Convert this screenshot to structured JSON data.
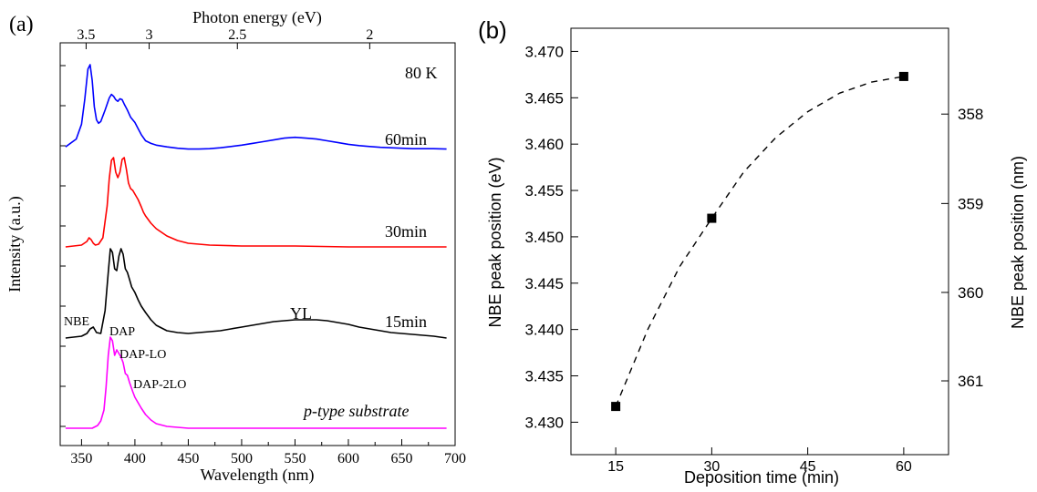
{
  "chart_data": [
    {
      "panel_label": "(a)",
      "type": "line",
      "xlabel": "Wavelength (nm)",
      "ylabel": "Intensity (a.u.)",
      "xlim": [
        330,
        700
      ],
      "x_ticks": [
        350,
        400,
        450,
        500,
        550,
        600,
        650,
        700
      ],
      "top_axis": {
        "label": "Photon energy (eV)",
        "ticks": [
          3.5,
          3,
          2.5,
          2
        ],
        "tick_labels": [
          "3.5",
          "3",
          "2.5",
          "2"
        ]
      },
      "y_tick_labels": "none",
      "annotations": [
        "80 K",
        "NBE",
        "DAP",
        "DAP-LO",
        "DAP-2LO",
        "YL"
      ],
      "series": [
        {
          "name": "60min",
          "color": "#0000ff",
          "x": [
            335,
            345,
            350,
            353,
            356,
            358,
            360,
            362,
            364,
            366,
            368,
            372,
            376,
            378,
            380,
            382,
            384,
            386,
            388,
            390,
            393,
            396,
            400,
            403,
            406,
            410,
            415,
            420,
            430,
            440,
            450,
            460,
            470,
            480,
            490,
            500,
            510,
            520,
            530,
            540,
            550,
            560,
            570,
            580,
            590,
            600,
            610,
            620,
            630,
            640,
            650,
            660,
            670,
            680,
            692
          ],
          "y": [
            0.06,
            0.15,
            0.32,
            0.6,
            0.95,
            1.0,
            0.82,
            0.52,
            0.37,
            0.33,
            0.35,
            0.48,
            0.62,
            0.66,
            0.64,
            0.6,
            0.58,
            0.61,
            0.6,
            0.55,
            0.48,
            0.4,
            0.34,
            0.27,
            0.2,
            0.13,
            0.1,
            0.08,
            0.06,
            0.045,
            0.035,
            0.035,
            0.04,
            0.05,
            0.065,
            0.08,
            0.1,
            0.12,
            0.14,
            0.16,
            0.17,
            0.16,
            0.15,
            0.13,
            0.11,
            0.09,
            0.075,
            0.065,
            0.055,
            0.05,
            0.045,
            0.04,
            0.04,
            0.04,
            0.035
          ]
        },
        {
          "name": "30min",
          "color": "#ff0000",
          "x": [
            335,
            350,
            355,
            357,
            359,
            361,
            363,
            366,
            370,
            374,
            376,
            378,
            380,
            382,
            384,
            386,
            388,
            390,
            392,
            394,
            396,
            398,
            400,
            403,
            406,
            408,
            410,
            415,
            420,
            430,
            440,
            450,
            470,
            500,
            550,
            600,
            650,
            692
          ],
          "y": [
            0.0,
            0.02,
            0.06,
            0.1,
            0.08,
            0.04,
            0.02,
            0.03,
            0.1,
            0.45,
            0.75,
            0.95,
            0.98,
            0.82,
            0.76,
            0.82,
            0.96,
            0.98,
            0.85,
            0.7,
            0.64,
            0.62,
            0.58,
            0.52,
            0.44,
            0.38,
            0.34,
            0.26,
            0.2,
            0.12,
            0.07,
            0.04,
            0.02,
            0.01,
            0.01,
            0.0,
            0.0,
            0.0
          ]
        },
        {
          "name": "15min",
          "color": "#000000",
          "x": [
            335,
            350,
            355,
            358,
            361,
            364,
            368,
            372,
            375,
            377,
            379,
            381,
            383,
            385,
            387,
            389,
            391,
            393,
            395,
            397,
            400,
            403,
            406,
            410,
            415,
            420,
            430,
            440,
            450,
            460,
            470,
            480,
            490,
            500,
            510,
            520,
            530,
            540,
            550,
            560,
            570,
            580,
            590,
            600,
            610,
            620,
            630,
            640,
            650,
            660,
            670,
            680,
            692
          ],
          "y": [
            0.0,
            0.02,
            0.05,
            0.1,
            0.12,
            0.06,
            0.05,
            0.3,
            0.72,
            0.98,
            0.94,
            0.76,
            0.74,
            0.9,
            0.98,
            0.92,
            0.76,
            0.72,
            0.64,
            0.56,
            0.5,
            0.42,
            0.35,
            0.28,
            0.2,
            0.14,
            0.08,
            0.06,
            0.05,
            0.06,
            0.07,
            0.08,
            0.1,
            0.12,
            0.14,
            0.16,
            0.18,
            0.19,
            0.2,
            0.2,
            0.2,
            0.19,
            0.17,
            0.15,
            0.12,
            0.1,
            0.08,
            0.06,
            0.05,
            0.04,
            0.03,
            0.02,
            0.0
          ]
        },
        {
          "name": "p-type substrate",
          "color": "#ff00ff",
          "x": [
            335,
            360,
            365,
            368,
            371,
            373,
            375,
            377,
            379,
            381,
            383,
            385,
            387,
            389,
            391,
            393,
            395,
            398,
            400,
            403,
            406,
            410,
            415,
            420,
            430,
            440,
            450,
            500,
            550,
            600,
            650,
            692
          ],
          "y": [
            0.0,
            0.0,
            0.03,
            0.08,
            0.2,
            0.45,
            0.8,
            1.0,
            0.96,
            0.8,
            0.86,
            0.82,
            0.78,
            0.72,
            0.6,
            0.58,
            0.5,
            0.4,
            0.34,
            0.28,
            0.22,
            0.15,
            0.09,
            0.05,
            0.02,
            0.01,
            0.0,
            0.0,
            0.0,
            0.0,
            0.0,
            0.0
          ]
        }
      ]
    },
    {
      "panel_label": "(b)",
      "type": "scatter",
      "xlabel": "Deposition time (min)",
      "ylabel": "NBE peak position (eV)",
      "y2label": "NBE peak position (nm)",
      "xlim": [
        8,
        67
      ],
      "ylim": [
        3.4265,
        3.4725
      ],
      "x_ticks": [
        15,
        30,
        45,
        60
      ],
      "y_ticks": [
        3.43,
        3.435,
        3.44,
        3.445,
        3.45,
        3.455,
        3.46,
        3.465,
        3.47
      ],
      "y_tick_labels": [
        "3.430",
        "3.435",
        "3.440",
        "3.445",
        "3.450",
        "3.455",
        "3.460",
        "3.465",
        "3.470"
      ],
      "y2_ticks": [
        358,
        359,
        360,
        361
      ],
      "points": {
        "x": [
          15,
          30,
          60
        ],
        "y": [
          3.4317,
          3.452,
          3.4673
        ]
      },
      "fit_curve": {
        "style": "dashed",
        "x": [
          15,
          20,
          25,
          30,
          35,
          40,
          45,
          50,
          55,
          60
        ],
        "y": [
          3.4317,
          3.44,
          3.4468,
          3.452,
          3.457,
          3.4607,
          3.4635,
          3.4655,
          3.4667,
          3.4673
        ]
      }
    }
  ]
}
